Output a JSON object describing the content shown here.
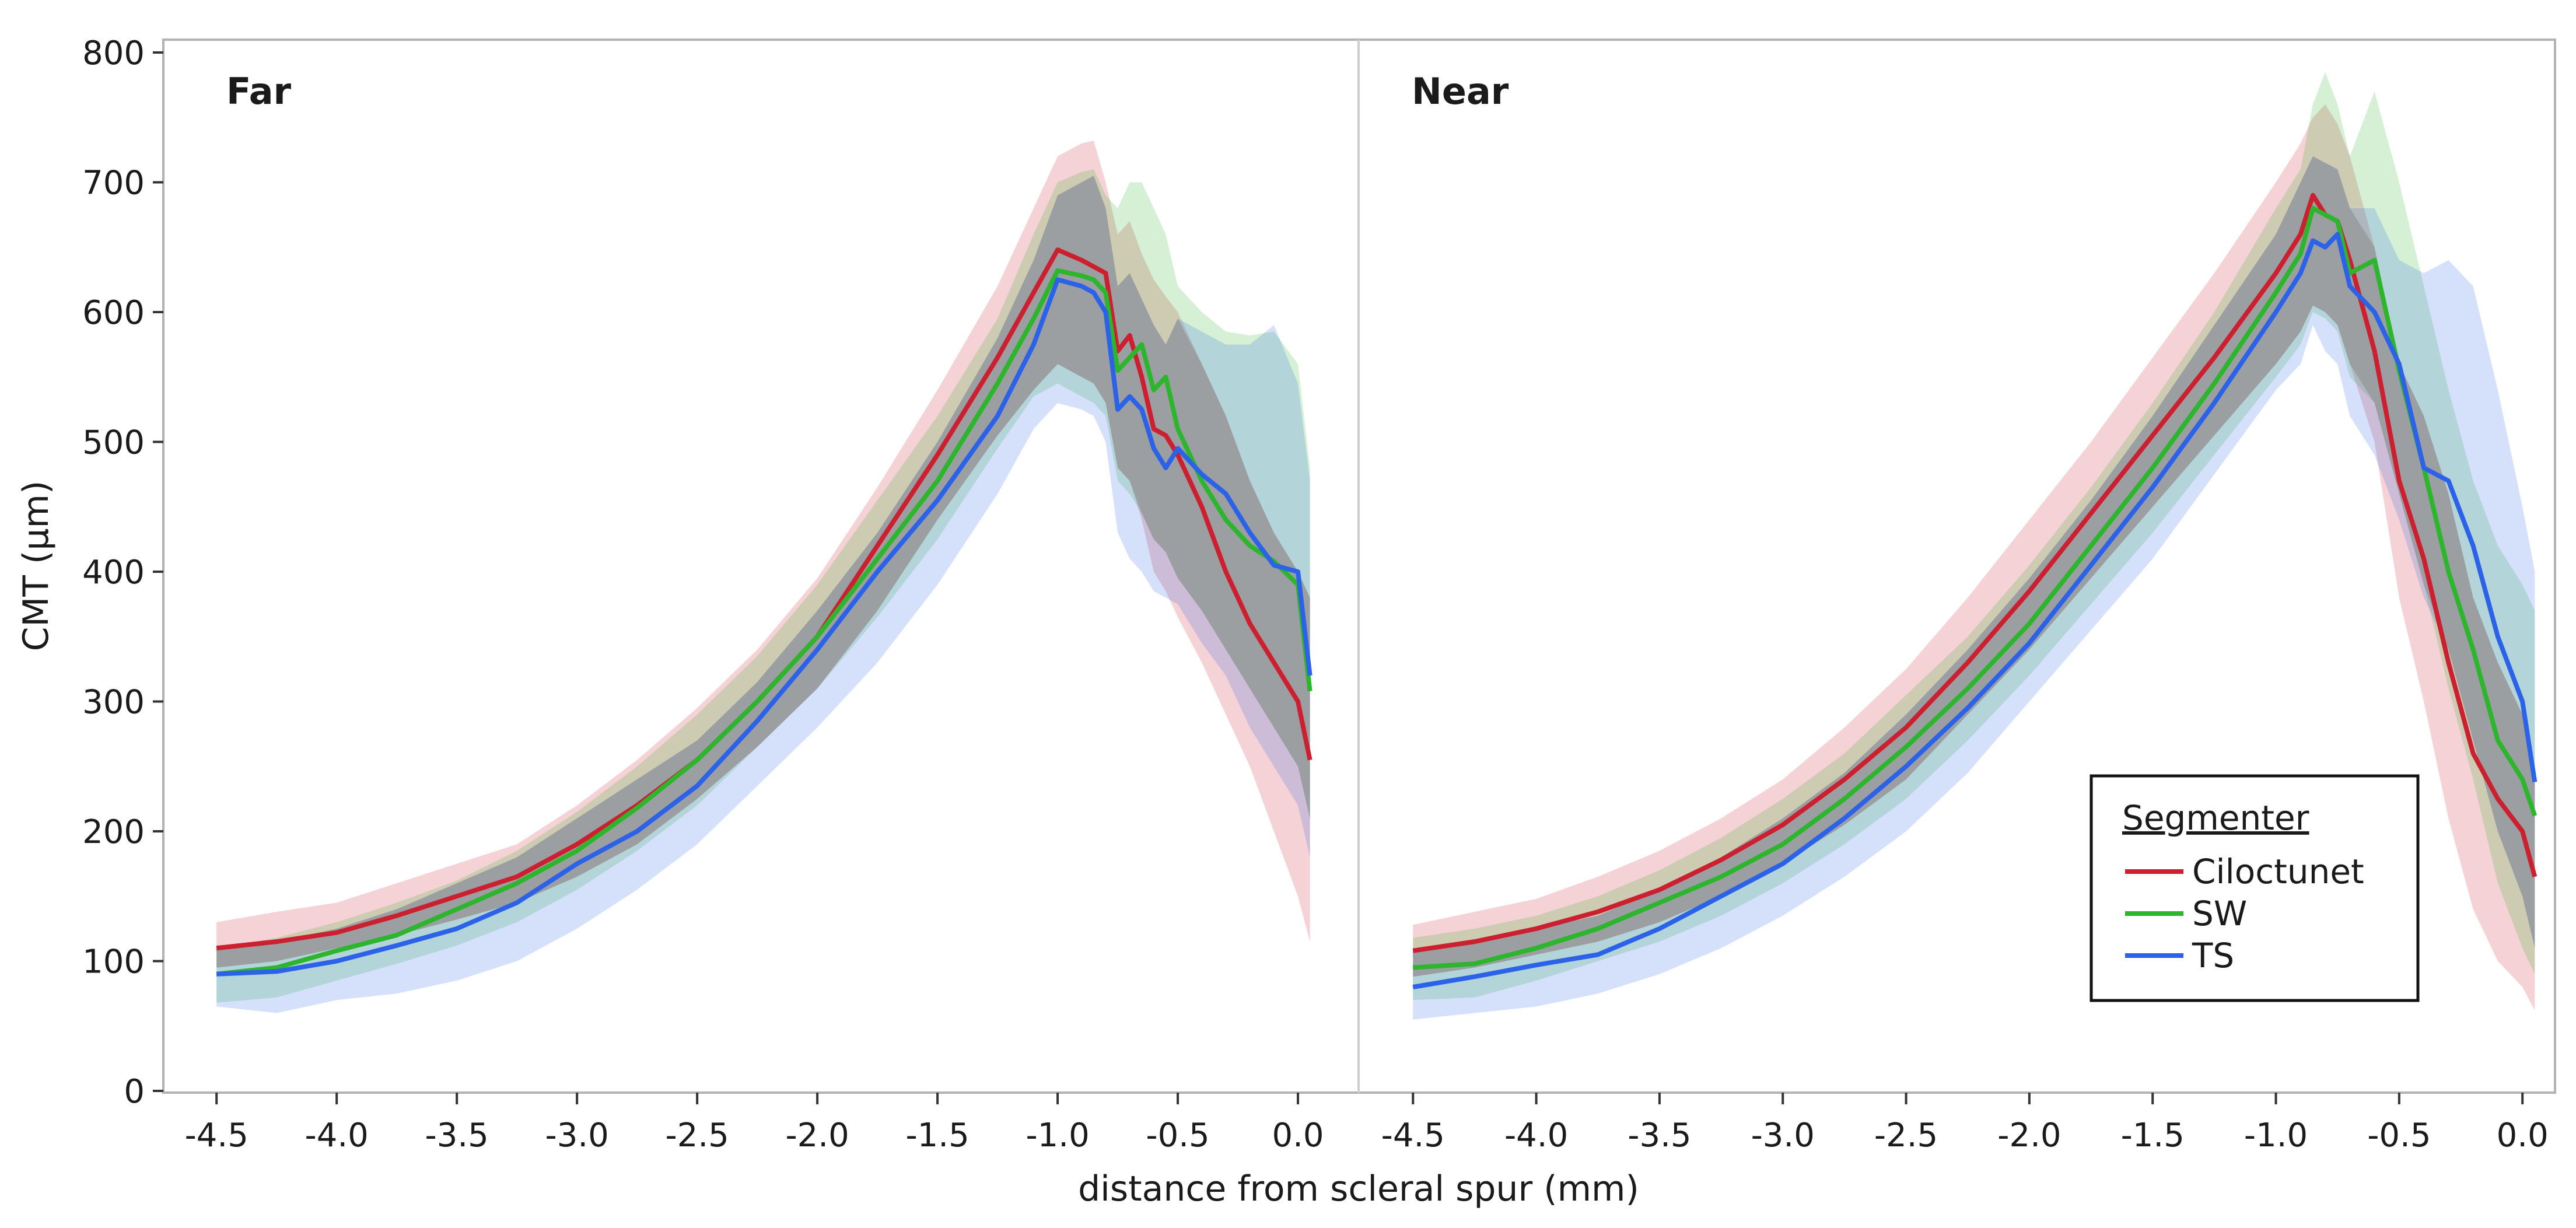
{
  "chart_data": {
    "type": "line",
    "xlabel": "distance from scleral spur (mm)",
    "ylabel": "CMT (μm)",
    "xlim": [
      -4.6,
      0.08
    ],
    "ylim": [
      0,
      800
    ],
    "xticks": [
      "-4.5",
      "-4.0",
      "-3.5",
      "-3.0",
      "-2.5",
      "-2.0",
      "-1.5",
      "-1.0",
      "-0.5",
      "0.0"
    ],
    "yticks": [
      "0",
      "100",
      "200",
      "300",
      "400",
      "500",
      "600",
      "700",
      "800"
    ],
    "legend": {
      "title": "Segmenter",
      "position": "bottom-right",
      "entries": [
        "Ciloctunet",
        "SW",
        "TS"
      ]
    },
    "colors": {
      "Ciloctunet": "#cc1f2f",
      "SW": "#2db52d",
      "TS": "#2b62e8",
      "overlap": "#8c8c8c"
    },
    "panels": [
      {
        "title": "Far",
        "series": [
          {
            "name": "Ciloctunet",
            "x": [
              -4.5,
              -4.25,
              -4.0,
              -3.75,
              -3.5,
              -3.25,
              -3.0,
              -2.75,
              -2.5,
              -2.25,
              -2.0,
              -1.75,
              -1.5,
              -1.25,
              -1.1,
              -1.0,
              -0.9,
              -0.85,
              -0.8,
              -0.75,
              -0.7,
              -0.65,
              -0.6,
              -0.55,
              -0.5,
              -0.4,
              -0.3,
              -0.2,
              -0.1,
              0.0,
              0.05
            ],
            "values": [
              110,
              115,
              122,
              135,
              150,
              165,
              190,
              220,
              255,
              300,
              350,
              420,
              490,
              565,
              615,
              648,
              640,
              635,
              630,
              570,
              582,
              550,
              510,
              505,
              490,
              450,
              400,
              360,
              330,
              300,
              255
            ],
            "lower": [
              95,
              100,
              110,
              120,
              132,
              145,
              165,
              190,
              225,
              265,
              310,
              370,
              440,
              505,
              540,
              560,
              550,
              545,
              530,
              480,
              470,
              440,
              400,
              385,
              365,
              330,
              290,
              250,
              200,
              150,
              115
            ],
            "upper": [
              130,
              138,
              145,
              160,
              175,
              190,
              220,
              255,
              295,
              340,
              395,
              465,
              540,
              620,
              680,
              720,
              730,
              732,
              700,
              660,
              670,
              645,
              625,
              612,
              600,
              560,
              520,
              470,
              430,
              400,
              380
            ]
          },
          {
            "name": "SW",
            "x": [
              -4.5,
              -4.25,
              -4.0,
              -3.75,
              -3.5,
              -3.25,
              -3.0,
              -2.75,
              -2.5,
              -2.25,
              -2.0,
              -1.75,
              -1.5,
              -1.25,
              -1.1,
              -1.0,
              -0.9,
              -0.85,
              -0.8,
              -0.75,
              -0.7,
              -0.65,
              -0.6,
              -0.55,
              -0.5,
              -0.4,
              -0.3,
              -0.2,
              -0.1,
              0.0,
              0.05
            ],
            "values": [
              90,
              95,
              108,
              120,
              140,
              160,
              185,
              218,
              255,
              300,
              350,
              410,
              470,
              545,
              595,
              632,
              628,
              625,
              615,
              555,
              565,
              575,
              540,
              550,
              510,
              470,
              440,
              420,
              408,
              390,
              308
            ],
            "lower": [
              68,
              72,
              85,
              98,
              112,
              130,
              155,
              185,
              220,
              265,
              310,
              365,
              425,
              495,
              535,
              545,
              535,
              530,
              520,
              470,
              460,
              445,
              425,
              415,
              395,
              370,
              340,
              310,
              280,
              250,
              210
            ],
            "upper": [
              110,
              118,
              130,
              145,
              162,
              185,
              215,
              250,
              290,
              335,
              390,
              455,
              520,
              595,
              660,
              700,
              708,
              710,
              690,
              680,
              700,
              700,
              680,
              660,
              620,
              600,
              585,
              582,
              585,
              560,
              480
            ]
          },
          {
            "name": "TS",
            "x": [
              -4.5,
              -4.25,
              -4.0,
              -3.75,
              -3.5,
              -3.25,
              -3.0,
              -2.75,
              -2.5,
              -2.25,
              -2.0,
              -1.75,
              -1.5,
              -1.25,
              -1.1,
              -1.0,
              -0.9,
              -0.85,
              -0.8,
              -0.75,
              -0.7,
              -0.65,
              -0.6,
              -0.55,
              -0.5,
              -0.4,
              -0.3,
              -0.2,
              -0.1,
              0.0,
              0.05
            ],
            "values": [
              90,
              92,
              100,
              112,
              125,
              145,
              175,
              200,
              235,
              285,
              340,
              400,
              455,
              520,
              575,
              625,
              620,
              615,
              600,
              525,
              535,
              525,
              495,
              480,
              495,
              475,
              460,
              430,
              405,
              400,
              320
            ],
            "lower": [
              65,
              60,
              70,
              75,
              85,
              100,
              125,
              155,
              190,
              235,
              280,
              330,
              390,
              460,
              510,
              530,
              525,
              520,
              500,
              430,
              410,
              400,
              385,
              380,
              375,
              345,
              320,
              280,
              250,
              220,
              180
            ],
            "upper": [
              112,
              115,
              125,
              140,
              160,
              180,
              210,
              240,
              270,
              315,
              370,
              430,
              500,
              580,
              640,
              690,
              700,
              705,
              680,
              620,
              630,
              610,
              590,
              575,
              595,
              585,
              575,
              575,
              590,
              545,
              470
            ]
          }
        ]
      },
      {
        "title": "Near",
        "series": [
          {
            "name": "Ciloctunet",
            "x": [
              -4.5,
              -4.25,
              -4.0,
              -3.75,
              -3.5,
              -3.25,
              -3.0,
              -2.75,
              -2.5,
              -2.25,
              -2.0,
              -1.75,
              -1.5,
              -1.25,
              -1.0,
              -0.9,
              -0.85,
              -0.8,
              -0.75,
              -0.7,
              -0.6,
              -0.5,
              -0.4,
              -0.3,
              -0.2,
              -0.1,
              0.0,
              0.05
            ],
            "values": [
              108,
              115,
              125,
              138,
              155,
              178,
              205,
              240,
              280,
              330,
              385,
              445,
              505,
              565,
              630,
              660,
              690,
              675,
              670,
              640,
              570,
              470,
              410,
              330,
              260,
              225,
              200,
              165
            ],
            "lower": [
              88,
              95,
              105,
              115,
              130,
              150,
              175,
              205,
              240,
              290,
              340,
              395,
              450,
              505,
              560,
              585,
              605,
              600,
              590,
              560,
              500,
              380,
              300,
              210,
              140,
              100,
              80,
              62
            ],
            "upper": [
              128,
              138,
              148,
              165,
              185,
              210,
              240,
              280,
              325,
              380,
              440,
              500,
              565,
              630,
              700,
              730,
              750,
              760,
              745,
              720,
              650,
              560,
              520,
              460,
              380,
              330,
              290,
              250
            ]
          },
          {
            "name": "SW",
            "x": [
              -4.5,
              -4.25,
              -4.0,
              -3.75,
              -3.5,
              -3.25,
              -3.0,
              -2.75,
              -2.5,
              -2.25,
              -2.0,
              -1.75,
              -1.5,
              -1.25,
              -1.0,
              -0.9,
              -0.85,
              -0.8,
              -0.75,
              -0.7,
              -0.6,
              -0.5,
              -0.4,
              -0.3,
              -0.2,
              -0.1,
              0.0,
              0.05
            ],
            "values": [
              95,
              98,
              110,
              125,
              145,
              165,
              190,
              225,
              265,
              310,
              360,
              420,
              480,
              545,
              615,
              645,
              680,
              675,
              670,
              630,
              640,
              555,
              480,
              400,
              340,
              270,
              240,
              212
            ],
            "lower": [
              70,
              72,
              85,
              100,
              115,
              135,
              160,
              190,
              225,
              270,
              320,
              375,
              430,
              490,
              550,
              575,
              600,
              595,
              585,
              550,
              530,
              460,
              390,
              310,
              240,
              160,
              110,
              90
            ],
            "upper": [
              118,
              125,
              135,
              150,
              170,
              195,
              225,
              260,
              305,
              350,
              405,
              465,
              530,
              600,
              680,
              710,
              760,
              785,
              760,
              720,
              770,
              700,
              620,
              540,
              470,
              420,
              390,
              370
            ]
          },
          {
            "name": "TS",
            "x": [
              -4.5,
              -4.25,
              -4.0,
              -3.75,
              -3.5,
              -3.25,
              -3.0,
              -2.75,
              -2.5,
              -2.25,
              -2.0,
              -1.75,
              -1.5,
              -1.25,
              -1.0,
              -0.9,
              -0.85,
              -0.8,
              -0.75,
              -0.7,
              -0.6,
              -0.5,
              -0.4,
              -0.3,
              -0.2,
              -0.1,
              0.0,
              0.05
            ],
            "values": [
              80,
              88,
              97,
              105,
              125,
              150,
              175,
              210,
              250,
              295,
              345,
              405,
              465,
              530,
              600,
              630,
              655,
              650,
              660,
              620,
              600,
              560,
              480,
              470,
              420,
              350,
              300,
              238
            ],
            "lower": [
              55,
              60,
              65,
              75,
              90,
              110,
              135,
              165,
              200,
              245,
              300,
              355,
              410,
              475,
              540,
              560,
              590,
              570,
              560,
              520,
              490,
              440,
              380,
              340,
              270,
              200,
              150,
              110
            ],
            "upper": [
              108,
              115,
              125,
              135,
              155,
              180,
              210,
              245,
              290,
              340,
              395,
              455,
              520,
              590,
              660,
              700,
              720,
              715,
              710,
              680,
              680,
              640,
              630,
              640,
              620,
              540,
              450,
              400
            ]
          }
        ]
      }
    ]
  }
}
